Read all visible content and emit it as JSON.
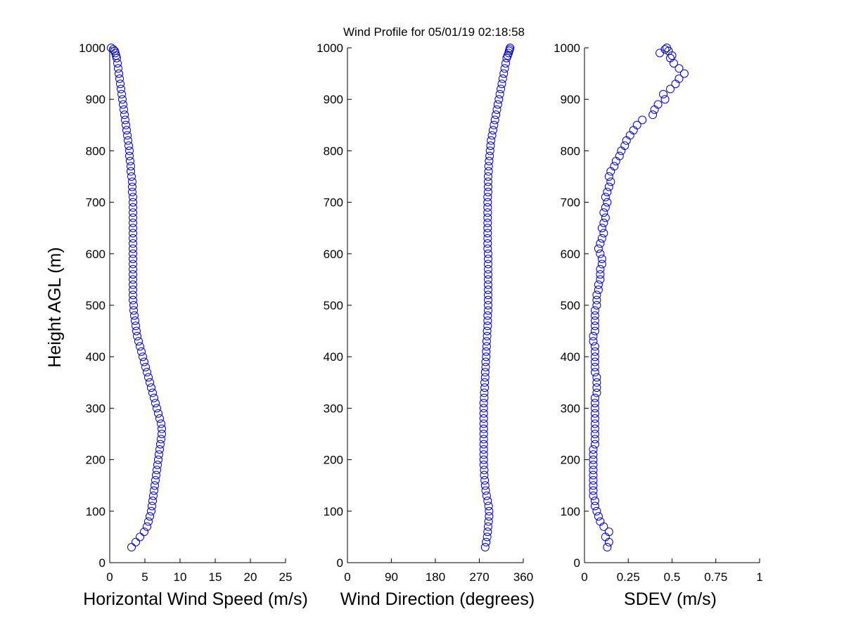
{
  "title": "Wind Profile for  05/01/19 02:18:58",
  "colors": {
    "marker": "#0000cc",
    "axis": "#000000",
    "background": "#ffffff"
  },
  "chart_data": [
    {
      "type": "scatter",
      "marker": "open-circle",
      "xlabel": "Horizontal Wind Speed (m/s)",
      "ylabel": "Height AGL (m)",
      "xlim": [
        0,
        25
      ],
      "ylim": [
        0,
        1000
      ],
      "xticks": [
        "0",
        "5",
        "10",
        "15",
        "20",
        "25"
      ],
      "yticks": [
        "0",
        "100",
        "200",
        "300",
        "400",
        "500",
        "600",
        "700",
        "800",
        "900",
        "1000"
      ],
      "grid": false,
      "x": [
        3.1,
        3.7,
        4.3,
        4.9,
        5.3,
        5.5,
        5.7,
        5.9,
        6.0,
        6.1,
        6.2,
        6.3,
        6.4,
        6.5,
        6.6,
        6.7,
        6.8,
        6.9,
        7.0,
        7.1,
        7.2,
        7.3,
        7.4,
        7.4,
        7.3,
        7.1,
        6.9,
        6.7,
        6.5,
        6.3,
        6.1,
        5.9,
        5.7,
        5.5,
        5.3,
        5.1,
        4.9,
        4.7,
        4.5,
        4.3,
        4.1,
        3.9,
        3.8,
        3.7,
        3.6,
        3.5,
        3.4,
        3.4,
        3.3,
        3.3,
        3.3,
        3.3,
        3.3,
        3.3,
        3.3,
        3.3,
        3.3,
        3.3,
        3.3,
        3.3,
        3.3,
        3.3,
        3.3,
        3.3,
        3.3,
        3.3,
        3.3,
        3.3,
        3.3,
        3.2,
        3.2,
        3.2,
        3.1,
        3.0,
        3.0,
        2.9,
        2.8,
        2.8,
        2.7,
        2.6,
        2.5,
        2.4,
        2.3,
        2.2,
        2.1,
        2.0,
        1.9,
        1.8,
        1.7,
        1.6,
        1.5,
        1.4,
        1.3,
        1.2,
        1.1,
        1.0,
        0.9,
        0.8,
        0.7,
        0.5,
        0.2
      ],
      "y": [
        30,
        40,
        50,
        60,
        70,
        80,
        90,
        100,
        110,
        120,
        130,
        140,
        150,
        160,
        170,
        180,
        190,
        200,
        210,
        220,
        230,
        240,
        250,
        260,
        270,
        280,
        290,
        300,
        310,
        320,
        330,
        340,
        350,
        360,
        370,
        380,
        390,
        400,
        410,
        420,
        430,
        440,
        450,
        460,
        470,
        480,
        490,
        500,
        510,
        520,
        530,
        540,
        550,
        560,
        570,
        580,
        590,
        600,
        610,
        620,
        630,
        640,
        650,
        660,
        670,
        680,
        690,
        700,
        710,
        720,
        730,
        740,
        750,
        760,
        770,
        780,
        790,
        800,
        810,
        820,
        830,
        840,
        850,
        860,
        870,
        880,
        890,
        900,
        910,
        920,
        930,
        940,
        950,
        960,
        970,
        980,
        985,
        990,
        994,
        997,
        1000
      ]
    },
    {
      "type": "scatter",
      "marker": "open-circle",
      "xlabel": "Wind Direction (degrees)",
      "ylabel": "",
      "xlim": [
        0,
        360
      ],
      "ylim": [
        0,
        1000
      ],
      "xticks": [
        "0",
        "90",
        "180",
        "270",
        "360"
      ],
      "yticks": [
        "0",
        "100",
        "200",
        "300",
        "400",
        "500",
        "600",
        "700",
        "800",
        "900",
        "1000"
      ],
      "grid": false,
      "x": [
        282,
        284,
        286,
        287,
        288,
        289,
        290,
        290,
        289,
        287,
        285,
        283,
        282,
        281,
        280,
        280,
        279,
        279,
        279,
        279,
        279,
        279,
        279,
        279,
        279,
        279,
        279,
        279,
        279,
        280,
        280,
        281,
        281,
        282,
        282,
        283,
        283,
        284,
        284,
        285,
        285,
        286,
        286,
        287,
        287,
        287,
        288,
        288,
        288,
        288,
        288,
        288,
        288,
        288,
        288,
        288,
        288,
        288,
        287,
        287,
        287,
        287,
        287,
        287,
        287,
        287,
        287,
        287,
        287,
        288,
        288,
        288,
        288,
        289,
        289,
        290,
        291,
        292,
        293,
        294,
        296,
        298,
        300,
        302,
        304,
        306,
        308,
        310,
        312,
        314,
        316,
        318,
        320,
        322,
        324,
        326,
        328,
        330,
        331,
        332,
        333
      ],
      "y": [
        30,
        40,
        50,
        60,
        70,
        80,
        90,
        100,
        110,
        120,
        130,
        140,
        150,
        160,
        170,
        180,
        190,
        200,
        210,
        220,
        230,
        240,
        250,
        260,
        270,
        280,
        290,
        300,
        310,
        320,
        330,
        340,
        350,
        360,
        370,
        380,
        390,
        400,
        410,
        420,
        430,
        440,
        450,
        460,
        470,
        480,
        490,
        500,
        510,
        520,
        530,
        540,
        550,
        560,
        570,
        580,
        590,
        600,
        610,
        620,
        630,
        640,
        650,
        660,
        670,
        680,
        690,
        700,
        710,
        720,
        730,
        740,
        750,
        760,
        770,
        780,
        790,
        800,
        810,
        820,
        830,
        840,
        850,
        860,
        870,
        880,
        890,
        900,
        910,
        920,
        930,
        940,
        950,
        960,
        970,
        980,
        985,
        990,
        994,
        997,
        1000
      ]
    },
    {
      "type": "scatter",
      "marker": "open-circle",
      "xlabel": "SDEV  (m/s)",
      "ylabel": "",
      "xlim": [
        0,
        1
      ],
      "ylim": [
        0,
        1000
      ],
      "xticks": [
        "0",
        "0.25",
        "0.5",
        "0.75",
        "1"
      ],
      "yticks": [
        "0",
        "100",
        "200",
        "300",
        "400",
        "500",
        "600",
        "700",
        "800",
        "900",
        "1000"
      ],
      "grid": false,
      "x": [
        0.13,
        0.14,
        0.12,
        0.14,
        0.11,
        0.09,
        0.08,
        0.07,
        0.06,
        0.06,
        0.05,
        0.05,
        0.05,
        0.05,
        0.05,
        0.05,
        0.05,
        0.05,
        0.05,
        0.05,
        0.06,
        0.06,
        0.06,
        0.06,
        0.06,
        0.06,
        0.06,
        0.06,
        0.06,
        0.06,
        0.07,
        0.07,
        0.07,
        0.07,
        0.06,
        0.06,
        0.06,
        0.06,
        0.06,
        0.06,
        0.05,
        0.05,
        0.06,
        0.06,
        0.06,
        0.06,
        0.06,
        0.07,
        0.07,
        0.07,
        0.08,
        0.08,
        0.09,
        0.09,
        0.09,
        0.1,
        0.1,
        0.09,
        0.08,
        0.09,
        0.1,
        0.11,
        0.1,
        0.11,
        0.12,
        0.11,
        0.12,
        0.13,
        0.12,
        0.13,
        0.14,
        0.15,
        0.14,
        0.15,
        0.17,
        0.18,
        0.2,
        0.21,
        0.23,
        0.24,
        0.26,
        0.28,
        0.3,
        0.33,
        0.39,
        0.4,
        0.42,
        0.46,
        0.45,
        0.49,
        0.52,
        0.54,
        0.57,
        0.54,
        0.51,
        0.49,
        0.5,
        0.43,
        0.48,
        0.46,
        0.47
      ],
      "y": [
        30,
        40,
        50,
        60,
        70,
        80,
        90,
        100,
        110,
        120,
        130,
        140,
        150,
        160,
        170,
        180,
        190,
        200,
        210,
        220,
        230,
        240,
        250,
        260,
        270,
        280,
        290,
        300,
        310,
        320,
        330,
        340,
        350,
        360,
        370,
        380,
        390,
        400,
        410,
        420,
        430,
        440,
        450,
        460,
        470,
        480,
        490,
        500,
        510,
        520,
        530,
        540,
        550,
        560,
        570,
        580,
        590,
        600,
        610,
        620,
        630,
        640,
        650,
        660,
        670,
        680,
        690,
        700,
        710,
        720,
        730,
        740,
        750,
        760,
        770,
        780,
        790,
        800,
        810,
        820,
        830,
        840,
        850,
        860,
        870,
        880,
        890,
        900,
        910,
        920,
        930,
        940,
        950,
        960,
        970,
        980,
        985,
        990,
        994,
        997,
        1000
      ]
    }
  ]
}
